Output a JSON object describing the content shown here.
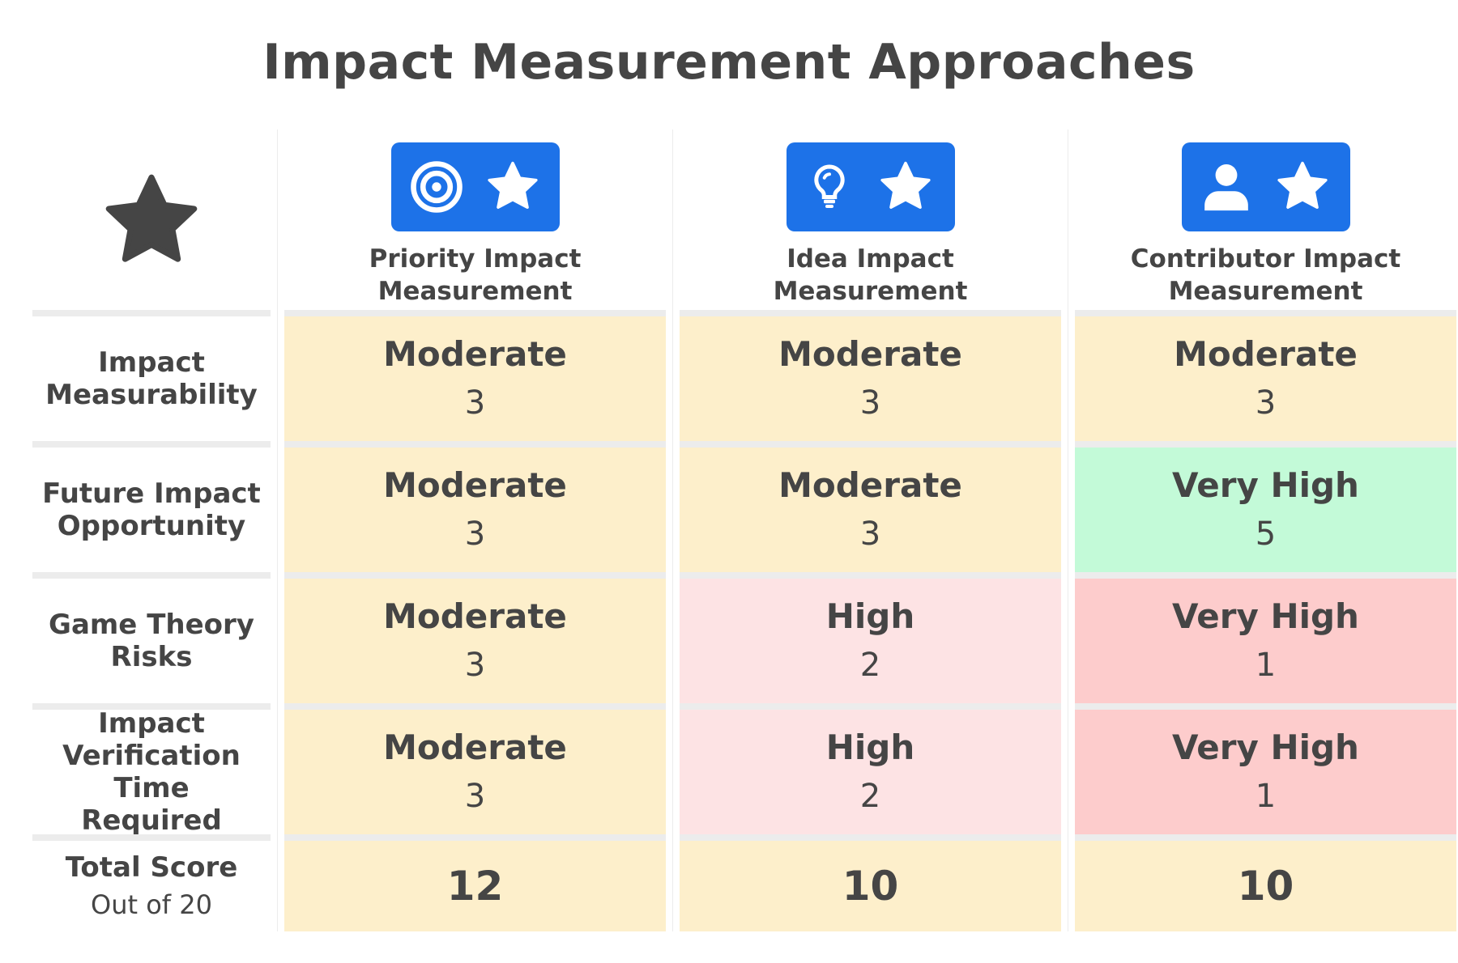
{
  "title": "Impact Measurement Approaches",
  "corner_icon": "star-icon",
  "columns": [
    {
      "icons": [
        "target-icon",
        "star-icon"
      ],
      "name_line1": "Priority Impact",
      "name_line2": "Measurement"
    },
    {
      "icons": [
        "lightbulb-icon",
        "star-icon"
      ],
      "name_line1": "Idea Impact",
      "name_line2": "Measurement"
    },
    {
      "icons": [
        "user-icon",
        "star-icon"
      ],
      "name_line1": "Contributor Impact",
      "name_line2": "Measurement"
    }
  ],
  "colors": {
    "accent": "#1d72e8",
    "moderate": "#fdefcb",
    "high_risk": "#fde3e4",
    "very_high_risk": "#fdcccc",
    "very_high_good": "#c3fad8"
  },
  "rows": [
    {
      "label_line1": "Impact",
      "label_line2": "Measurability",
      "cells": [
        {
          "level": "Moderate",
          "score": "3"
        },
        {
          "level": "Moderate",
          "score": "3"
        },
        {
          "level": "Moderate",
          "score": "3"
        }
      ]
    },
    {
      "label_line1": "Future Impact",
      "label_line2": "Opportunity",
      "cells": [
        {
          "level": "Moderate",
          "score": "3"
        },
        {
          "level": "Moderate",
          "score": "3"
        },
        {
          "level": "Very High",
          "score": "5"
        }
      ]
    },
    {
      "label_line1": "Game Theory",
      "label_line2": "Risks",
      "cells": [
        {
          "level": "Moderate",
          "score": "3"
        },
        {
          "level": "High",
          "score": "2"
        },
        {
          "level": "Very High",
          "score": "1"
        }
      ]
    },
    {
      "label_line1": "Impact",
      "label_line2": "Verification",
      "label_line3": "Time Required",
      "cells": [
        {
          "level": "Moderate",
          "score": "3"
        },
        {
          "level": "High",
          "score": "2"
        },
        {
          "level": "Very High",
          "score": "1"
        }
      ]
    }
  ],
  "total": {
    "label": "Total Score",
    "sublabel": "Out of 20",
    "values": [
      "12",
      "10",
      "10"
    ]
  }
}
